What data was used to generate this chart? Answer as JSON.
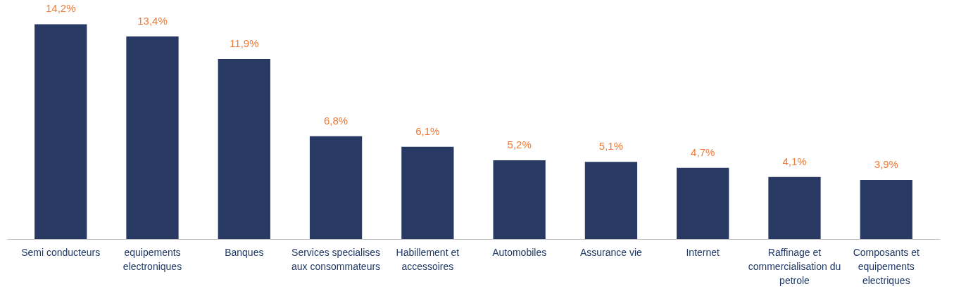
{
  "chart_data": {
    "type": "bar",
    "categories": [
      "Semi conducteurs",
      "equipements electroniques",
      "Banques",
      "Services specialises aux consommateurs",
      "Habillement et accessoires",
      "Automobiles",
      "Assurance vie",
      "Internet",
      "Raffinage et commercialisation du petrole",
      "Composants et equipements electriques"
    ],
    "values": [
      14.2,
      13.4,
      11.9,
      6.8,
      6.1,
      5.2,
      5.1,
      4.7,
      4.1,
      3.9
    ],
    "value_labels": [
      "14,2%",
      "13,4%",
      "11,9%",
      "6,8%",
      "6,1%",
      "5,2%",
      "5,1%",
      "4,7%",
      "4,1%",
      "3,9%"
    ],
    "color": "#283a64"
  }
}
